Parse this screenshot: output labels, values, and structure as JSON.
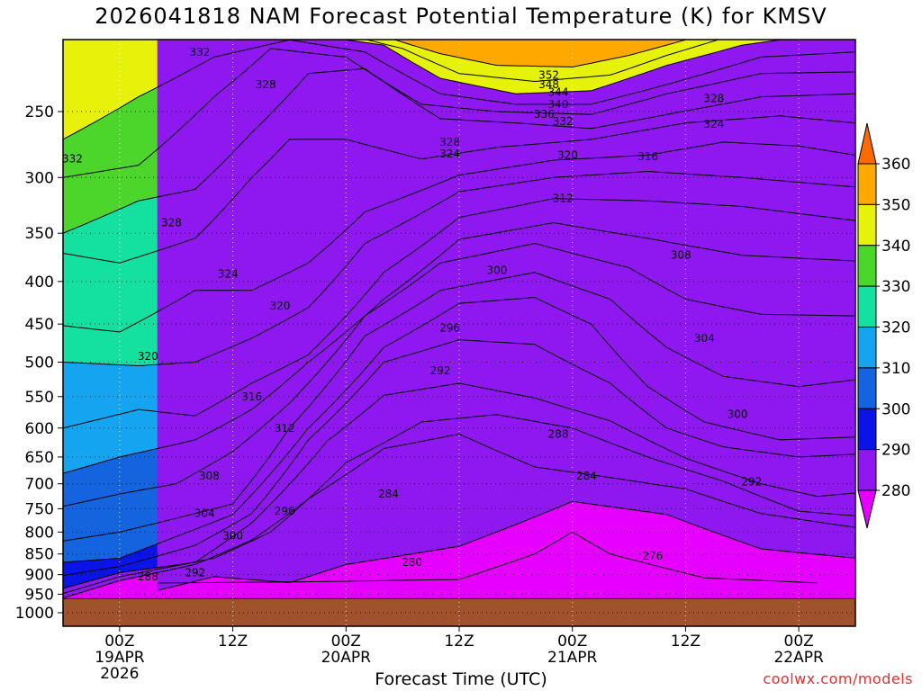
{
  "chart_data": {
    "type": "heatmap",
    "title": "2026041818 NAM Forecast Potential Temperature (K) for KMSV",
    "xlabel": "Forecast Time (UTC)",
    "ylabel": "",
    "credit": "coolwx.com/models",
    "y_scale": "log-pressure",
    "ylim": [
      1000,
      200
    ],
    "xlim_hours": [
      -6,
      78
    ],
    "x_ticks": [
      {
        "hours": 0,
        "lines": [
          "00Z",
          "19APR",
          "2026"
        ]
      },
      {
        "hours": 12,
        "lines": [
          "12Z"
        ]
      },
      {
        "hours": 24,
        "lines": [
          "00Z",
          "20APR"
        ]
      },
      {
        "hours": 36,
        "lines": [
          "12Z"
        ]
      },
      {
        "hours": 48,
        "lines": [
          "00Z",
          "21APR"
        ]
      },
      {
        "hours": 60,
        "lines": [
          "12Z"
        ]
      },
      {
        "hours": 72,
        "lines": [
          "00Z",
          "22APR"
        ]
      }
    ],
    "y_ticks": [
      250,
      300,
      350,
      400,
      450,
      500,
      550,
      600,
      650,
      700,
      750,
      800,
      850,
      900,
      950,
      1000
    ],
    "colorbar": {
      "levels": [
        270,
        280,
        290,
        300,
        310,
        320,
        330,
        340,
        350,
        360,
        370
      ],
      "tick_labels": [
        280,
        290,
        300,
        310,
        320,
        330,
        340,
        350,
        360
      ],
      "colors": [
        "#e600ff",
        "#8f18f0",
        "#0a14e6",
        "#1464e0",
        "#14a4f0",
        "#14e0a0",
        "#4cd52a",
        "#e6f20a",
        "#ffa800",
        "#ff6a00"
      ]
    },
    "contour_interval": 2,
    "ground_color": "#a0522d",
    "series": [
      {
        "name": "276",
        "points": [
          [
            4,
            921
          ],
          [
            20,
            918
          ],
          [
            36,
            912
          ],
          [
            44,
            850
          ],
          [
            48,
            800
          ],
          [
            52,
            850
          ],
          [
            62,
            908
          ],
          [
            74,
            921
          ]
        ]
      },
      {
        "name": "280",
        "points": [
          [
            4,
            940
          ],
          [
            10,
            905
          ],
          [
            18,
            920
          ],
          [
            24,
            875
          ],
          [
            36,
            832
          ],
          [
            48,
            735
          ],
          [
            58,
            762
          ],
          [
            68,
            838
          ],
          [
            78,
            860
          ]
        ]
      },
      {
        "name": "284",
        "points": [
          [
            -6,
            960
          ],
          [
            0,
            915
          ],
          [
            8,
            875
          ],
          [
            14,
            818
          ],
          [
            20,
            730
          ],
          [
            28,
            635
          ],
          [
            36,
            610
          ],
          [
            44,
            668
          ],
          [
            52,
            688
          ],
          [
            60,
            710
          ],
          [
            68,
            760
          ],
          [
            78,
            790
          ]
        ]
      },
      {
        "name": "288",
        "points": [
          [
            -6,
            948
          ],
          [
            0,
            905
          ],
          [
            10,
            860
          ],
          [
            16,
            800
          ],
          [
            24,
            660
          ],
          [
            32,
            590
          ],
          [
            40,
            578
          ],
          [
            48,
            600
          ],
          [
            56,
            650
          ],
          [
            64,
            695
          ],
          [
            72,
            755
          ],
          [
            78,
            765
          ]
        ]
      },
      {
        "name": "292",
        "points": [
          [
            -6,
            935
          ],
          [
            0,
            895
          ],
          [
            8,
            870
          ],
          [
            14,
            780
          ],
          [
            22,
            622
          ],
          [
            28,
            548
          ],
          [
            36,
            530
          ],
          [
            44,
            552
          ],
          [
            52,
            588
          ],
          [
            60,
            652
          ],
          [
            68,
            700
          ],
          [
            74,
            725
          ],
          [
            78,
            718
          ]
        ]
      },
      {
        "name": "296",
        "points": [
          [
            -6,
            902
          ],
          [
            0,
            880
          ],
          [
            8,
            830
          ],
          [
            14,
            760
          ],
          [
            20,
            620
          ],
          [
            28,
            500
          ],
          [
            36,
            470
          ],
          [
            44,
            476
          ],
          [
            52,
            530
          ],
          [
            58,
            600
          ],
          [
            64,
            632
          ],
          [
            72,
            650
          ],
          [
            78,
            645
          ]
        ]
      },
      {
        "name": "300",
        "points": [
          [
            -6,
            870
          ],
          [
            0,
            860
          ],
          [
            6,
            810
          ],
          [
            12,
            762
          ],
          [
            20,
            600
          ],
          [
            28,
            480
          ],
          [
            36,
            425
          ],
          [
            44,
            418
          ],
          [
            50,
            450
          ],
          [
            56,
            535
          ],
          [
            62,
            590
          ],
          [
            70,
            620
          ],
          [
            78,
            615
          ]
        ]
      },
      {
        "name": "304",
        "points": [
          [
            -6,
            820
          ],
          [
            0,
            800
          ],
          [
            6,
            770
          ],
          [
            12,
            740
          ],
          [
            18,
            600
          ],
          [
            26,
            465
          ],
          [
            34,
            410
          ],
          [
            44,
            390
          ],
          [
            52,
            420
          ],
          [
            58,
            480
          ],
          [
            64,
            520
          ],
          [
            72,
            535
          ],
          [
            78,
            525
          ]
        ]
      },
      {
        "name": "308",
        "points": [
          [
            -6,
            745
          ],
          [
            0,
            720
          ],
          [
            6,
            700
          ],
          [
            12,
            640
          ],
          [
            18,
            560
          ],
          [
            26,
            440
          ],
          [
            34,
            380
          ],
          [
            44,
            360
          ],
          [
            54,
            385
          ],
          [
            60,
            420
          ],
          [
            68,
            438
          ],
          [
            78,
            440
          ]
        ]
      },
      {
        "name": "312",
        "points": [
          [
            -6,
            680
          ],
          [
            0,
            650
          ],
          [
            8,
            620
          ],
          [
            14,
            570
          ],
          [
            20,
            500
          ],
          [
            28,
            420
          ],
          [
            36,
            356
          ],
          [
            46,
            340
          ],
          [
            56,
            355
          ],
          [
            66,
            372
          ],
          [
            78,
            378
          ]
        ]
      },
      {
        "name": "316",
        "points": [
          [
            -6,
            600
          ],
          [
            2,
            570
          ],
          [
            8,
            580
          ],
          [
            14,
            530
          ],
          [
            20,
            490
          ],
          [
            28,
            390
          ],
          [
            36,
            335
          ],
          [
            46,
            318
          ],
          [
            56,
            320
          ],
          [
            66,
            325
          ],
          [
            78,
            338
          ]
        ]
      },
      {
        "name": "320",
        "points": [
          [
            -6,
            500
          ],
          [
            2,
            505
          ],
          [
            8,
            500
          ],
          [
            14,
            468
          ],
          [
            20,
            430
          ],
          [
            26,
            360
          ],
          [
            36,
            312
          ],
          [
            46,
            300
          ],
          [
            56,
            295
          ],
          [
            66,
            300
          ],
          [
            78,
            308
          ]
        ]
      },
      {
        "name": "324",
        "points": [
          [
            -6,
            452
          ],
          [
            0,
            460
          ],
          [
            8,
            410
          ],
          [
            14,
            410
          ],
          [
            20,
            380
          ],
          [
            26,
            330
          ],
          [
            36,
            298
          ],
          [
            46,
            286
          ],
          [
            56,
            282
          ],
          [
            64,
            272
          ],
          [
            72,
            275
          ],
          [
            78,
            282
          ]
        ]
      },
      {
        "name": "328",
        "points": [
          [
            -6,
            370
          ],
          [
            0,
            380
          ],
          [
            8,
            355
          ],
          [
            14,
            300
          ],
          [
            18,
            270
          ],
          [
            24,
            270
          ],
          [
            32,
            285
          ],
          [
            40,
            276
          ],
          [
            50,
            270
          ],
          [
            60,
            258
          ],
          [
            70,
            253
          ],
          [
            78,
            258
          ]
        ]
      },
      {
        "name": "332",
        "points": [
          [
            -6,
            350
          ],
          [
            2,
            320
          ],
          [
            8,
            310
          ],
          [
            14,
            265
          ],
          [
            20,
            225
          ],
          [
            26,
            222
          ],
          [
            34,
            255
          ],
          [
            42,
            258
          ],
          [
            50,
            262
          ],
          [
            58,
            252
          ],
          [
            68,
            240
          ],
          [
            78,
            238
          ]
        ]
      },
      {
        "name": "336",
        "points": [
          [
            -6,
            300
          ],
          [
            2,
            290
          ],
          [
            10,
            240
          ],
          [
            16,
            210
          ],
          [
            24,
            215
          ],
          [
            32,
            245
          ],
          [
            40,
            250
          ],
          [
            50,
            252
          ],
          [
            58,
            238
          ],
          [
            68,
            225
          ],
          [
            78,
            224
          ]
        ]
      },
      {
        "name": "340",
        "points": [
          [
            -6,
            270
          ],
          [
            2,
            240
          ],
          [
            10,
            215
          ],
          [
            18,
            205
          ],
          [
            26,
            212
          ],
          [
            34,
            238
          ],
          [
            42,
            245
          ],
          [
            50,
            245
          ],
          [
            58,
            232
          ],
          [
            68,
            215
          ],
          [
            78,
            212
          ]
        ]
      },
      {
        "name": "344",
        "points": [
          [
            20,
            202
          ],
          [
            28,
            208
          ],
          [
            34,
            228
          ],
          [
            42,
            238
          ],
          [
            50,
            236
          ],
          [
            58,
            220
          ],
          [
            66,
            208
          ],
          [
            74,
            202
          ]
        ]
      },
      {
        "name": "348",
        "points": [
          [
            24,
            202
          ],
          [
            30,
            210
          ],
          [
            36,
            225
          ],
          [
            44,
            230
          ],
          [
            52,
            226
          ],
          [
            58,
            214
          ],
          [
            64,
            204
          ]
        ]
      },
      {
        "name": "352",
        "points": [
          [
            28,
            203
          ],
          [
            34,
            213
          ],
          [
            40,
            220
          ],
          [
            48,
            221
          ],
          [
            54,
            214
          ],
          [
            60,
            205
          ]
        ]
      }
    ],
    "contour_labels": [
      {
        "text": "332",
        "hours": 8.5,
        "pressure": 212
      },
      {
        "text": "332",
        "hours": -5,
        "pressure": 285
      },
      {
        "text": "328",
        "hours": 15.5,
        "pressure": 232
      },
      {
        "text": "328",
        "hours": 5.5,
        "pressure": 340
      },
      {
        "text": "324",
        "hours": 11.5,
        "pressure": 392
      },
      {
        "text": "320",
        "hours": 17,
        "pressure": 428
      },
      {
        "text": "320",
        "hours": 3,
        "pressure": 492
      },
      {
        "text": "316",
        "hours": 14,
        "pressure": 550
      },
      {
        "text": "312",
        "hours": 17.5,
        "pressure": 600
      },
      {
        "text": "308",
        "hours": 9.5,
        "pressure": 685
      },
      {
        "text": "304",
        "hours": 9,
        "pressure": 760
      },
      {
        "text": "300",
        "hours": 12,
        "pressure": 808
      },
      {
        "text": "296",
        "hours": 17.5,
        "pressure": 755
      },
      {
        "text": "292",
        "hours": 8,
        "pressure": 895
      },
      {
        "text": "288",
        "hours": 3,
        "pressure": 905
      },
      {
        "text": "284",
        "hours": 28.5,
        "pressure": 720
      },
      {
        "text": "280",
        "hours": 31,
        "pressure": 870
      },
      {
        "text": "276",
        "hours": 56.5,
        "pressure": 855
      },
      {
        "text": "284",
        "hours": 49.5,
        "pressure": 685
      },
      {
        "text": "288",
        "hours": 46.5,
        "pressure": 610
      },
      {
        "text": "292",
        "hours": 34,
        "pressure": 512
      },
      {
        "text": "296",
        "hours": 35,
        "pressure": 455
      },
      {
        "text": "300",
        "hours": 40,
        "pressure": 388
      },
      {
        "text": "304",
        "hours": 62,
        "pressure": 468
      },
      {
        "text": "300",
        "hours": 65.5,
        "pressure": 578
      },
      {
        "text": "292",
        "hours": 67,
        "pressure": 696
      },
      {
        "text": "308",
        "hours": 59.5,
        "pressure": 372
      },
      {
        "text": "312",
        "hours": 47,
        "pressure": 318
      },
      {
        "text": "316",
        "hours": 56,
        "pressure": 283
      },
      {
        "text": "320",
        "hours": 47.5,
        "pressure": 282
      },
      {
        "text": "324",
        "hours": 35,
        "pressure": 281
      },
      {
        "text": "328",
        "hours": 35,
        "pressure": 272
      },
      {
        "text": "332",
        "hours": 47,
        "pressure": 257
      },
      {
        "text": "336",
        "hours": 45,
        "pressure": 252
      },
      {
        "text": "340",
        "hours": 46.5,
        "pressure": 245
      },
      {
        "text": "344",
        "hours": 46.5,
        "pressure": 237
      },
      {
        "text": "348",
        "hours": 45.5,
        "pressure": 232
      },
      {
        "text": "352",
        "hours": 45.5,
        "pressure": 226
      },
      {
        "text": "328",
        "hours": 63,
        "pressure": 241
      },
      {
        "text": "324",
        "hours": 63,
        "pressure": 259
      }
    ]
  }
}
